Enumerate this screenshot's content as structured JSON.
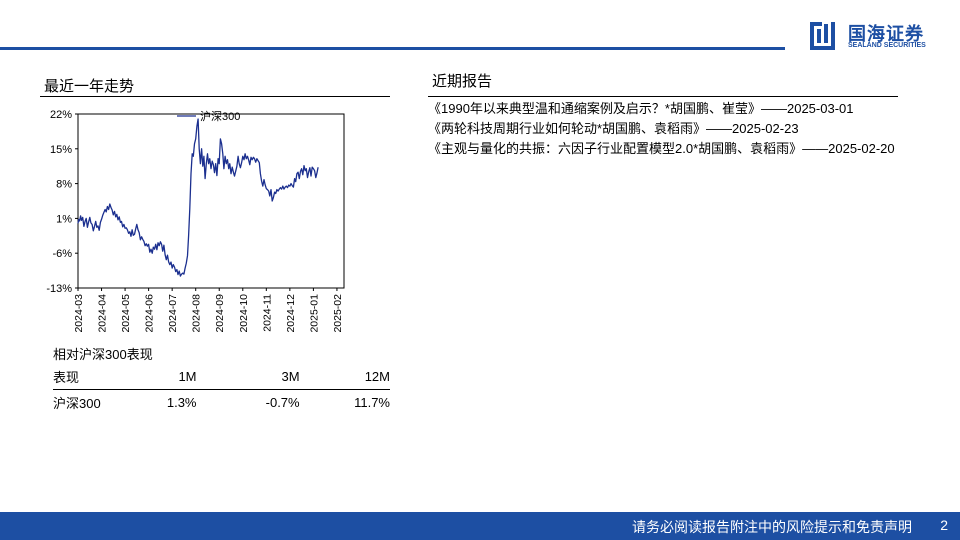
{
  "header": {
    "logo_cn": "国海证券",
    "logo_en": "SEALAND SECURITIES",
    "accent_color": "#1d4fa3"
  },
  "left": {
    "section_title": "最近一年走势"
  },
  "chart_data": {
    "type": "line",
    "title": "",
    "xlabel": "",
    "ylabel": "",
    "ylim": [
      -13,
      22
    ],
    "yticks": [
      "22%",
      "15%",
      "8%",
      "1%",
      "-6%",
      "-13%"
    ],
    "yticks_values": [
      22,
      15,
      8,
      1,
      -6,
      -13
    ],
    "xticks": [
      "2024-03",
      "2024-04",
      "2024-05",
      "2024-06",
      "2024-07",
      "2024-08",
      "2024-09",
      "2024-10",
      "2024-11",
      "2024-12",
      "2025-01",
      "2025-02"
    ],
    "legend": "top-center",
    "grid": false,
    "series": [
      {
        "name": "沪深300",
        "color": "#1b2f8f",
        "points": [
          [
            0,
            0.0
          ],
          [
            0.03,
            0.8
          ],
          [
            0.07,
            0.5
          ],
          [
            0.11,
            1.5
          ],
          [
            0.15,
            0.6
          ],
          [
            0.2,
            1.2
          ],
          [
            0.25,
            -0.6
          ],
          [
            0.3,
            0.4
          ],
          [
            0.35,
            1.0
          ],
          [
            0.4,
            -0.8
          ],
          [
            0.45,
            0.3
          ],
          [
            0.5,
            1.2
          ],
          [
            0.55,
            0.1
          ],
          [
            0.6,
            -0.2
          ],
          [
            0.65,
            -1.5
          ],
          [
            0.7,
            -0.6
          ],
          [
            0.75,
            0.4
          ],
          [
            0.8,
            -0.8
          ],
          [
            0.85,
            -0.5
          ],
          [
            0.9,
            -1.4
          ],
          [
            0.95,
            0.2
          ],
          [
            1.0,
            0.8
          ],
          [
            1.05,
            1.6
          ],
          [
            1.1,
            2.2
          ],
          [
            1.15,
            2.8
          ],
          [
            1.2,
            2.3
          ],
          [
            1.25,
            3.4
          ],
          [
            1.3,
            2.8
          ],
          [
            1.35,
            3.9
          ],
          [
            1.4,
            3.2
          ],
          [
            1.45,
            2.7
          ],
          [
            1.5,
            1.7
          ],
          [
            1.55,
            2.4
          ],
          [
            1.6,
            1.3
          ],
          [
            1.65,
            1.8
          ],
          [
            1.7,
            0.7
          ],
          [
            1.75,
            1.3
          ],
          [
            1.8,
            0.2
          ],
          [
            1.85,
            0.4
          ],
          [
            1.9,
            -0.7
          ],
          [
            1.95,
            -0.2
          ],
          [
            2.0,
            -1.0
          ],
          [
            2.05,
            -0.9
          ],
          [
            2.1,
            -1.3
          ],
          [
            2.15,
            -2.0
          ],
          [
            2.2,
            -1.7
          ],
          [
            2.25,
            -2.6
          ],
          [
            2.3,
            -1.3
          ],
          [
            2.35,
            -2.4
          ],
          [
            2.4,
            -2.2
          ],
          [
            2.45,
            -1.1
          ],
          [
            2.5,
            -0.2
          ],
          [
            2.55,
            -1.3
          ],
          [
            2.6,
            -1.9
          ],
          [
            2.65,
            -3.3
          ],
          [
            2.7,
            -2.7
          ],
          [
            2.75,
            -3.2
          ],
          [
            2.8,
            -3.6
          ],
          [
            2.85,
            -4.5
          ],
          [
            2.9,
            -4.1
          ],
          [
            2.95,
            -4.6
          ],
          [
            3.0,
            -4.2
          ],
          [
            3.05,
            -5.8
          ],
          [
            3.1,
            -5.2
          ],
          [
            3.15,
            -6.0
          ],
          [
            3.2,
            -4.8
          ],
          [
            3.25,
            -5.2
          ],
          [
            3.3,
            -4.2
          ],
          [
            3.35,
            -5.3
          ],
          [
            3.4,
            -3.9
          ],
          [
            3.45,
            -4.5
          ],
          [
            3.5,
            -3.7
          ],
          [
            3.55,
            -4.2
          ],
          [
            3.6,
            -5.6
          ],
          [
            3.65,
            -4.4
          ],
          [
            3.7,
            -6.3
          ],
          [
            3.75,
            -7.3
          ],
          [
            3.8,
            -6.4
          ],
          [
            3.85,
            -7.7
          ],
          [
            3.9,
            -8.3
          ],
          [
            3.95,
            -7.8
          ],
          [
            4.0,
            -9.0
          ],
          [
            4.05,
            -8.3
          ],
          [
            4.1,
            -8.8
          ],
          [
            4.15,
            -9.7
          ],
          [
            4.2,
            -9.3
          ],
          [
            4.25,
            -10.3
          ],
          [
            4.3,
            -9.6
          ],
          [
            4.35,
            -10.6
          ],
          [
            4.4,
            -10.2
          ],
          [
            4.45,
            -10.0
          ],
          [
            4.5,
            -10.2
          ],
          [
            4.55,
            -9.0
          ],
          [
            4.6,
            -8.0
          ],
          [
            4.65,
            -6.5
          ],
          [
            4.7,
            -2.5
          ],
          [
            4.75,
            3.0
          ],
          [
            4.8,
            10.0
          ],
          [
            4.85,
            14.0
          ],
          [
            4.9,
            13.5
          ],
          [
            4.95,
            16.0
          ],
          [
            5.0,
            17.0
          ],
          [
            5.05,
            19.5
          ],
          [
            5.1,
            21.0
          ],
          [
            5.15,
            15.0
          ],
          [
            5.2,
            12.0
          ],
          [
            5.25,
            15.0
          ],
          [
            5.3,
            11.5
          ],
          [
            5.35,
            13.5
          ],
          [
            5.4,
            9.0
          ],
          [
            5.45,
            12.0
          ],
          [
            5.5,
            14.0
          ],
          [
            5.55,
            12.0
          ],
          [
            5.6,
            13.0
          ],
          [
            5.65,
            11.0
          ],
          [
            5.7,
            12.5
          ],
          [
            5.75,
            11.8
          ],
          [
            5.8,
            10.2
          ],
          [
            5.85,
            12.0
          ],
          [
            5.9,
            9.6
          ],
          [
            5.95,
            13.0
          ],
          [
            6.0,
            12.0
          ],
          [
            6.05,
            17.0
          ],
          [
            6.1,
            16.0
          ],
          [
            6.15,
            14.0
          ],
          [
            6.2,
            11.0
          ],
          [
            6.25,
            13.5
          ],
          [
            6.3,
            12.0
          ],
          [
            6.35,
            12.8
          ],
          [
            6.4,
            11.0
          ],
          [
            6.45,
            12.0
          ],
          [
            6.5,
            10.0
          ],
          [
            6.55,
            11.3
          ],
          [
            6.6,
            10.3
          ],
          [
            6.65,
            9.5
          ],
          [
            6.7,
            10.5
          ],
          [
            6.75,
            11.5
          ],
          [
            6.8,
            13.5
          ],
          [
            6.85,
            12.0
          ],
          [
            6.9,
            11.2
          ],
          [
            6.95,
            12.2
          ],
          [
            7.0,
            13.5
          ],
          [
            7.05,
            12.8
          ],
          [
            7.1,
            14.0
          ],
          [
            7.15,
            13.0
          ],
          [
            7.2,
            13.5
          ],
          [
            7.25,
            12.7
          ],
          [
            7.3,
            11.8
          ],
          [
            7.35,
            13.3
          ],
          [
            7.4,
            12.8
          ],
          [
            7.45,
            13.3
          ],
          [
            7.5,
            13.0
          ],
          [
            7.55,
            12.3
          ],
          [
            7.6,
            13.0
          ],
          [
            7.65,
            12.6
          ],
          [
            7.7,
            12.2
          ],
          [
            7.75,
            10.0
          ],
          [
            7.8,
            8.5
          ],
          [
            7.85,
            7.5
          ],
          [
            7.9,
            8.8
          ],
          [
            7.95,
            7.8
          ],
          [
            8.0,
            7.0
          ],
          [
            8.05,
            6.8
          ],
          [
            8.1,
            6.5
          ],
          [
            8.15,
            5.5
          ],
          [
            8.2,
            6.8
          ],
          [
            8.25,
            4.5
          ],
          [
            8.3,
            5.2
          ],
          [
            8.35,
            6.3
          ],
          [
            8.4,
            6.0
          ],
          [
            8.45,
            6.8
          ],
          [
            8.5,
            6.5
          ],
          [
            8.55,
            6.9
          ],
          [
            8.6,
            7.2
          ],
          [
            8.65,
            6.9
          ],
          [
            8.7,
            7.5
          ],
          [
            8.75,
            6.9
          ],
          [
            8.8,
            7.3
          ],
          [
            8.85,
            7.5
          ],
          [
            8.9,
            7.2
          ],
          [
            8.95,
            7.7
          ],
          [
            9.0,
            7.5
          ],
          [
            9.05,
            8.0
          ],
          [
            9.1,
            7.6
          ],
          [
            9.15,
            7.3
          ],
          [
            9.2,
            9.0
          ],
          [
            9.25,
            8.4
          ],
          [
            9.3,
            10.0
          ],
          [
            9.35,
            10.3
          ],
          [
            9.4,
            9.0
          ],
          [
            9.45,
            10.5
          ],
          [
            9.5,
            11.0
          ],
          [
            9.55,
            9.8
          ],
          [
            9.6,
            11.6
          ],
          [
            9.65,
            10.6
          ],
          [
            9.7,
            11.0
          ],
          [
            9.75,
            9.2
          ],
          [
            9.8,
            10.4
          ],
          [
            9.85,
            11.2
          ],
          [
            9.9,
            9.5
          ],
          [
            9.95,
            11.3
          ],
          [
            10.0,
            11.0
          ],
          [
            10.05,
            10.6
          ],
          [
            10.1,
            9.2
          ],
          [
            10.15,
            10.1
          ],
          [
            10.2,
            11.3
          ]
        ]
      }
    ]
  },
  "performance": {
    "caption": "相对沪深300表现",
    "headers": [
      "表现",
      "1M",
      "3M",
      "12M"
    ],
    "rows": [
      [
        "沪深300",
        "1.3%",
        "-0.7%",
        "11.7%"
      ]
    ]
  },
  "right": {
    "section_title": "近期报告",
    "reports": [
      "《1990年以来典型温和通缩案例及启示？*胡国鹏、崔莹》——2025-03-01",
      "《两轮科技周期行业如何轮动*胡国鹏、袁稻雨》——2025-02-23",
      "《主观与量化的共振：六因子行业配置模型2.0*胡国鹏、袁稻雨》——2025-02-20"
    ]
  },
  "footer": {
    "disclaimer": "请务必阅读报告附注中的风险提示和免责声明",
    "page": "2"
  }
}
